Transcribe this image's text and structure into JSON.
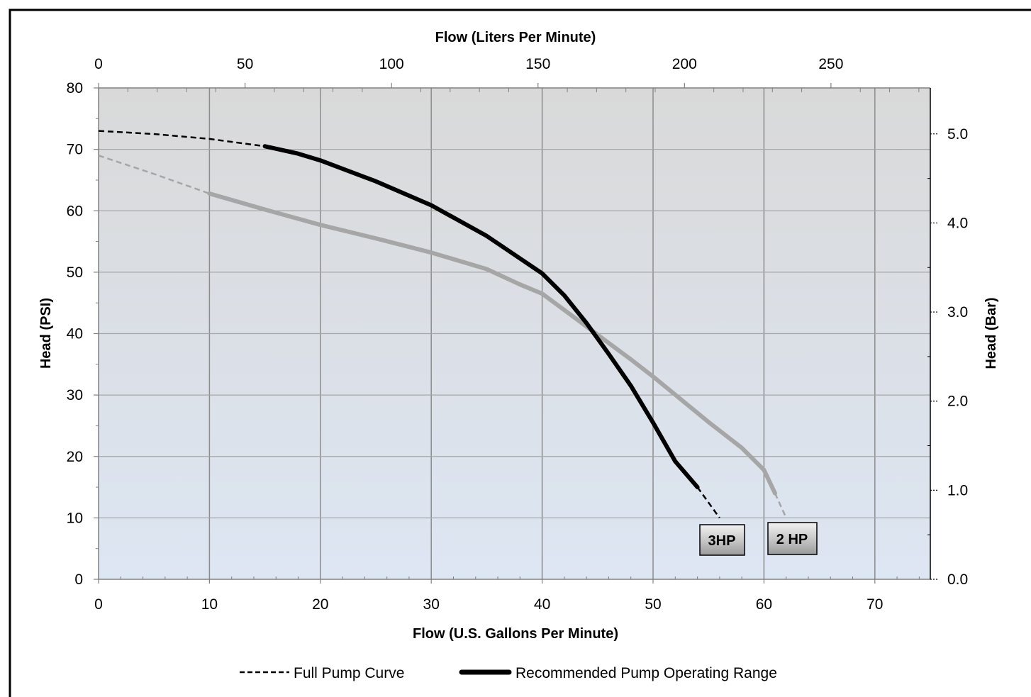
{
  "chart_data": {
    "type": "line",
    "x_axis_bottom": {
      "label": "Flow (U.S. Gallons Per Minute)",
      "range": [
        0,
        75
      ],
      "ticks": [
        0,
        10,
        20,
        30,
        40,
        50,
        60,
        70
      ],
      "tick_labels": [
        "0",
        "10",
        "20",
        "30",
        "40",
        "50",
        "60",
        "70"
      ]
    },
    "x_axis_top": {
      "label": "Flow (Liters Per Minute)",
      "ticks": [
        0,
        50,
        100,
        150,
        200,
        250
      ],
      "tick_labels": [
        "0",
        "50",
        "100",
        "150",
        "200",
        "250"
      ]
    },
    "y_axis_left": {
      "label": "Head (PSI)",
      "range": [
        0,
        80
      ],
      "ticks": [
        0,
        10,
        20,
        30,
        40,
        50,
        60,
        70,
        80
      ],
      "tick_labels": [
        "0",
        "10",
        "20",
        "30",
        "40",
        "50",
        "60",
        "70",
        "80"
      ]
    },
    "y_axis_right": {
      "label": "Head (Bar)",
      "ticks": [
        0,
        1,
        2,
        3,
        4,
        5
      ],
      "tick_labels": [
        "0.0",
        "1.0",
        "2.0",
        "3.0",
        "4.0",
        "5.0"
      ]
    },
    "grid": true,
    "series": [
      {
        "name": "3HP",
        "color": "#000000",
        "full_curve_start": [
          [
            0,
            73
          ],
          [
            5,
            72.5
          ],
          [
            10,
            71.7
          ],
          [
            15,
            70.5
          ]
        ],
        "operating_range": [
          [
            15,
            70.5
          ],
          [
            18,
            69.3
          ],
          [
            20,
            68.2
          ],
          [
            25,
            64.8
          ],
          [
            30,
            60.9
          ],
          [
            35,
            55.9
          ],
          [
            40,
            49.8
          ],
          [
            42,
            46.2
          ],
          [
            44,
            41.7
          ],
          [
            46,
            36.7
          ],
          [
            48,
            31.5
          ],
          [
            50,
            25.5
          ],
          [
            52,
            19.2
          ],
          [
            54,
            15
          ]
        ],
        "full_curve_end": [
          [
            54,
            15
          ],
          [
            56,
            10
          ]
        ]
      },
      {
        "name": "2 HP",
        "color": "#a6a6a6",
        "full_curve_start": [
          [
            0,
            69
          ],
          [
            5,
            66
          ],
          [
            10,
            62.8
          ]
        ],
        "operating_range": [
          [
            10,
            62.8
          ],
          [
            15,
            60.2
          ],
          [
            20,
            57.7
          ],
          [
            25,
            55.5
          ],
          [
            30,
            53.2
          ],
          [
            35,
            50.5
          ],
          [
            38,
            48
          ],
          [
            40,
            46.5
          ],
          [
            43,
            42.5
          ],
          [
            45,
            39.8
          ],
          [
            48,
            35.8
          ],
          [
            50,
            33
          ],
          [
            55,
            25.6
          ],
          [
            58,
            21.4
          ],
          [
            60,
            17.8
          ],
          [
            61,
            14
          ]
        ],
        "full_curve_end": [
          [
            61,
            14
          ],
          [
            62,
            10
          ]
        ]
      }
    ],
    "legend": {
      "position": "bottom",
      "items": [
        {
          "label": "Full Pump Curve",
          "style": "dashed"
        },
        {
          "label": "Recommended Pump Operating Range",
          "style": "thick"
        }
      ]
    },
    "background_gradient": [
      "#d9d9d9",
      "#dde6f3"
    ]
  }
}
